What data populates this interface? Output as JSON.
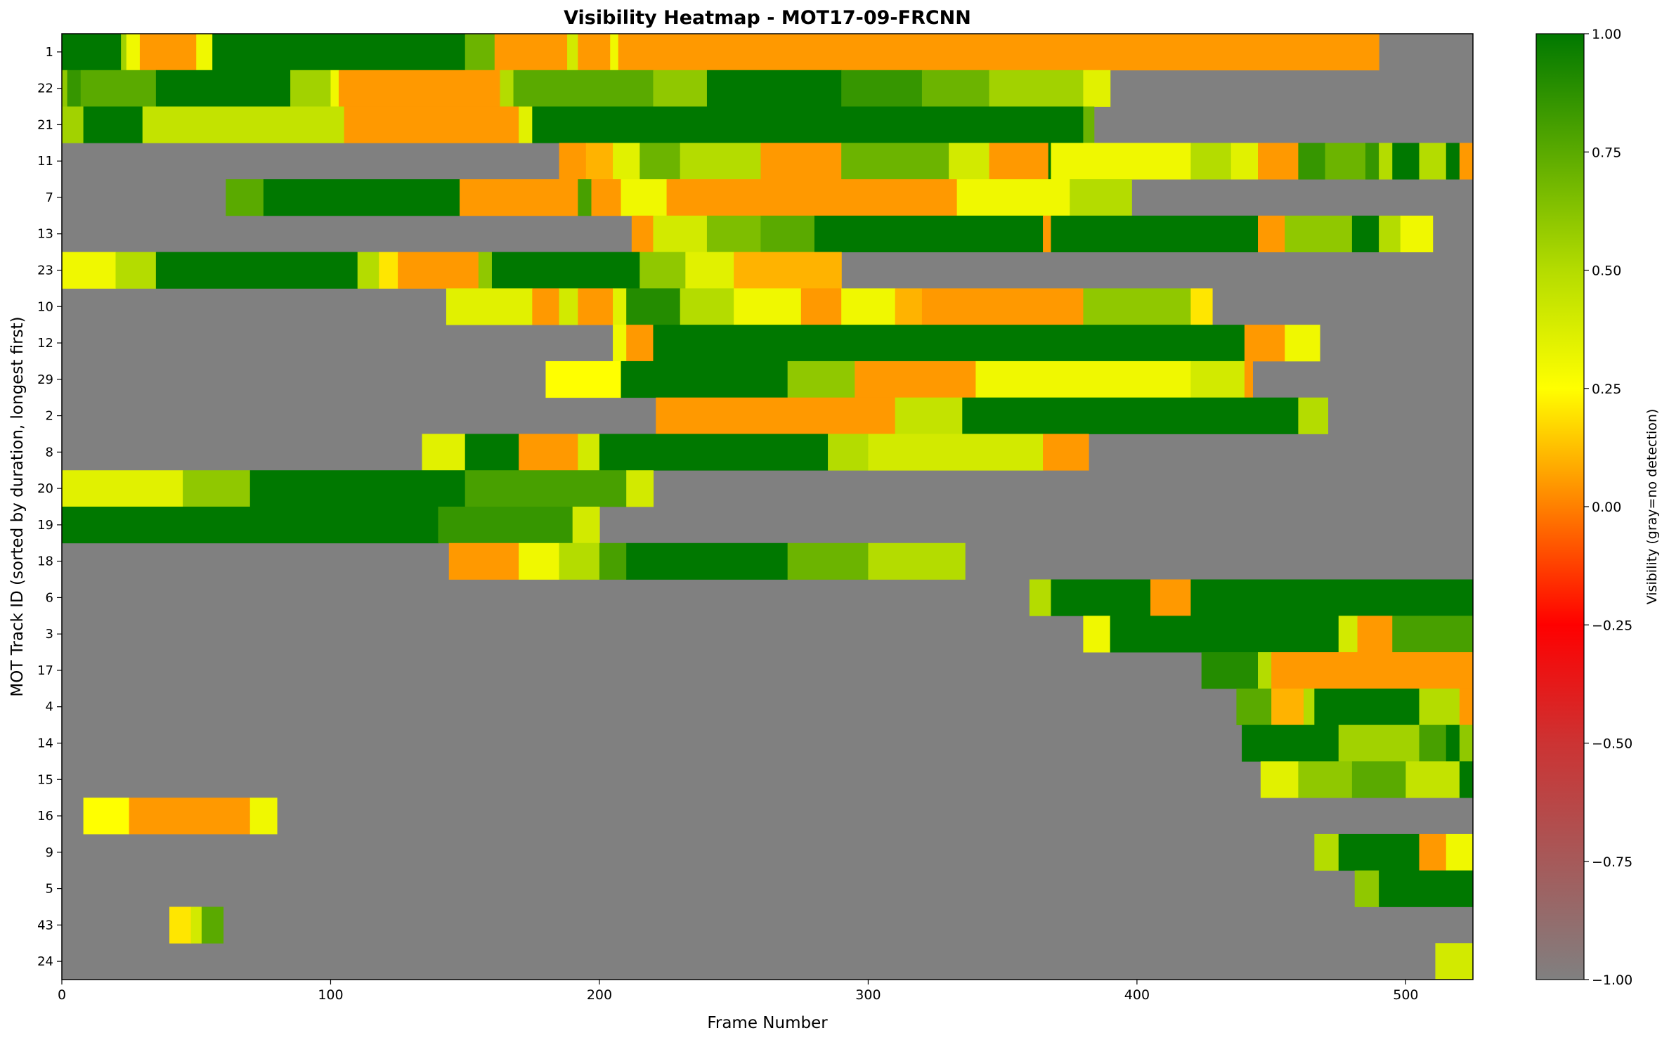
{
  "chart_data": {
    "type": "heatmap",
    "title": "Visibility Heatmap - MOT17-09-FRCNN",
    "xlabel": "Frame Number",
    "ylabel": "MOT Track ID (sorted by duration, longest first)",
    "xlim": [
      0,
      525
    ],
    "x_ticks": [
      0,
      100,
      200,
      300,
      400,
      500
    ],
    "colorbar": {
      "label": "Visibility (gray=no detection)",
      "range": [
        -1.0,
        1.0
      ],
      "ticks": [
        "1.00",
        "0.75",
        "0.50",
        "0.25",
        "0.00",
        "−0.25",
        "−0.50",
        "−0.75",
        "−1.00"
      ],
      "tick_values": [
        1.0,
        0.75,
        0.5,
        0.25,
        0.0,
        -0.25,
        -0.5,
        -0.75,
        -1.0
      ],
      "colors": {
        "-1.0": "#808080",
        "-0.5": "#cc3333",
        "-0.25": "#ff0000",
        "0.0": "#ff8000",
        "0.25": "#ffff00",
        "0.5": "#b4dc00",
        "1.0": "#007800"
      }
    },
    "no_detection_color": "#808080",
    "tracks": [
      {
        "id": "1",
        "segments": [
          [
            0,
            22,
            1.0
          ],
          [
            22,
            24,
            0.55
          ],
          [
            24,
            29,
            0.3
          ],
          [
            29,
            50,
            0.05
          ],
          [
            50,
            56,
            0.3
          ],
          [
            56,
            150,
            1.0
          ],
          [
            150,
            161,
            0.7
          ],
          [
            161,
            188,
            0.05
          ],
          [
            188,
            192,
            0.4
          ],
          [
            192,
            204,
            0.05
          ],
          [
            204,
            207,
            0.3
          ],
          [
            207,
            490,
            0.05
          ]
        ]
      },
      {
        "id": "22",
        "segments": [
          [
            0,
            2,
            0.6
          ],
          [
            2,
            7,
            0.85
          ],
          [
            7,
            35,
            0.75
          ],
          [
            35,
            85,
            1.0
          ],
          [
            85,
            100,
            0.55
          ],
          [
            100,
            103,
            0.3
          ],
          [
            103,
            163,
            0.05
          ],
          [
            163,
            168,
            0.5
          ],
          [
            168,
            220,
            0.75
          ],
          [
            220,
            240,
            0.6
          ],
          [
            240,
            290,
            1.0
          ],
          [
            290,
            320,
            0.85
          ],
          [
            320,
            345,
            0.7
          ],
          [
            345,
            380,
            0.55
          ],
          [
            380,
            390,
            0.35
          ]
        ]
      },
      {
        "id": "21",
        "segments": [
          [
            0,
            8,
            0.55
          ],
          [
            8,
            30,
            1.0
          ],
          [
            30,
            105,
            0.45
          ],
          [
            105,
            170,
            0.05
          ],
          [
            170,
            175,
            0.35
          ],
          [
            175,
            380,
            1.0
          ],
          [
            380,
            384,
            0.7
          ]
        ]
      },
      {
        "id": "11",
        "segments": [
          [
            185,
            195,
            0.05
          ],
          [
            195,
            205,
            0.1
          ],
          [
            205,
            215,
            0.35
          ],
          [
            215,
            230,
            0.7
          ],
          [
            230,
            260,
            0.5
          ],
          [
            260,
            290,
            0.05
          ],
          [
            290,
            330,
            0.7
          ],
          [
            330,
            345,
            0.4
          ],
          [
            345,
            367,
            0.05
          ],
          [
            367,
            368,
            1.0
          ],
          [
            368,
            420,
            0.3
          ],
          [
            420,
            435,
            0.5
          ],
          [
            435,
            445,
            0.35
          ],
          [
            445,
            460,
            0.05
          ],
          [
            460,
            470,
            0.85
          ],
          [
            470,
            485,
            0.7
          ],
          [
            485,
            490,
            0.85
          ],
          [
            490,
            495,
            0.5
          ],
          [
            495,
            505,
            1.0
          ],
          [
            505,
            515,
            0.5
          ],
          [
            515,
            520,
            1.0
          ],
          [
            520,
            525,
            0.05
          ]
        ]
      },
      {
        "id": "7",
        "segments": [
          [
            61,
            75,
            0.75
          ],
          [
            75,
            148,
            1.0
          ],
          [
            148,
            192,
            0.05
          ],
          [
            192,
            197,
            0.8
          ],
          [
            197,
            208,
            0.05
          ],
          [
            208,
            225,
            0.3
          ],
          [
            225,
            333,
            0.05
          ],
          [
            333,
            375,
            0.3
          ],
          [
            375,
            398,
            0.5
          ]
        ]
      },
      {
        "id": "13",
        "segments": [
          [
            212,
            220,
            0.05
          ],
          [
            220,
            240,
            0.4
          ],
          [
            240,
            260,
            0.65
          ],
          [
            260,
            280,
            0.75
          ],
          [
            280,
            365,
            1.0
          ],
          [
            365,
            368,
            0.05
          ],
          [
            368,
            445,
            1.0
          ],
          [
            445,
            455,
            0.05
          ],
          [
            455,
            480,
            0.6
          ],
          [
            480,
            490,
            1.0
          ],
          [
            490,
            498,
            0.5
          ],
          [
            498,
            510,
            0.3
          ]
        ]
      },
      {
        "id": "23",
        "segments": [
          [
            0,
            20,
            0.3
          ],
          [
            20,
            35,
            0.5
          ],
          [
            35,
            110,
            1.0
          ],
          [
            110,
            118,
            0.5
          ],
          [
            118,
            125,
            0.2
          ],
          [
            125,
            155,
            0.05
          ],
          [
            155,
            160,
            0.6
          ],
          [
            160,
            215,
            1.0
          ],
          [
            215,
            232,
            0.6
          ],
          [
            232,
            250,
            0.35
          ],
          [
            250,
            290,
            0.1
          ]
        ]
      },
      {
        "id": "10",
        "segments": [
          [
            143,
            175,
            0.35
          ],
          [
            175,
            185,
            0.05
          ],
          [
            185,
            192,
            0.4
          ],
          [
            192,
            205,
            0.05
          ],
          [
            205,
            210,
            0.35
          ],
          [
            210,
            230,
            0.9
          ],
          [
            230,
            250,
            0.5
          ],
          [
            250,
            275,
            0.3
          ],
          [
            275,
            290,
            0.05
          ],
          [
            290,
            310,
            0.3
          ],
          [
            310,
            320,
            0.1
          ],
          [
            320,
            380,
            0.05
          ],
          [
            380,
            420,
            0.6
          ],
          [
            420,
            428,
            0.2
          ]
        ]
      },
      {
        "id": "12",
        "segments": [
          [
            205,
            210,
            0.3
          ],
          [
            210,
            220,
            0.05
          ],
          [
            220,
            440,
            1.0
          ],
          [
            440,
            455,
            0.05
          ],
          [
            455,
            468,
            0.3
          ]
        ]
      },
      {
        "id": "29",
        "segments": [
          [
            180,
            208,
            0.25
          ],
          [
            208,
            270,
            1.0
          ],
          [
            270,
            295,
            0.6
          ],
          [
            295,
            340,
            0.05
          ],
          [
            340,
            420,
            0.3
          ],
          [
            420,
            440,
            0.4
          ],
          [
            440,
            443,
            0.05
          ]
        ]
      },
      {
        "id": "2",
        "segments": [
          [
            221,
            310,
            0.05
          ],
          [
            310,
            335,
            0.45
          ],
          [
            335,
            460,
            1.0
          ],
          [
            460,
            471,
            0.5
          ]
        ]
      },
      {
        "id": "8",
        "segments": [
          [
            134,
            150,
            0.35
          ],
          [
            150,
            170,
            1.0
          ],
          [
            170,
            192,
            0.05
          ],
          [
            192,
            200,
            0.4
          ],
          [
            200,
            285,
            1.0
          ],
          [
            285,
            300,
            0.5
          ],
          [
            300,
            365,
            0.4
          ],
          [
            365,
            382,
            0.05
          ]
        ]
      },
      {
        "id": "20",
        "segments": [
          [
            0,
            45,
            0.35
          ],
          [
            45,
            70,
            0.6
          ],
          [
            70,
            150,
            1.0
          ],
          [
            150,
            210,
            0.8
          ],
          [
            210,
            220,
            0.4
          ]
        ]
      },
      {
        "id": "19",
        "segments": [
          [
            0,
            140,
            1.0
          ],
          [
            140,
            190,
            0.85
          ],
          [
            190,
            200,
            0.4
          ]
        ]
      },
      {
        "id": "18",
        "segments": [
          [
            144,
            170,
            0.05
          ],
          [
            170,
            185,
            0.3
          ],
          [
            185,
            200,
            0.5
          ],
          [
            200,
            210,
            0.8
          ],
          [
            210,
            270,
            1.0
          ],
          [
            270,
            300,
            0.7
          ],
          [
            300,
            336,
            0.5
          ]
        ]
      },
      {
        "id": "6",
        "segments": [
          [
            360,
            368,
            0.5
          ],
          [
            368,
            405,
            1.0
          ],
          [
            405,
            420,
            0.05
          ],
          [
            420,
            525,
            1.0
          ]
        ]
      },
      {
        "id": "3",
        "segments": [
          [
            380,
            390,
            0.3
          ],
          [
            390,
            475,
            1.0
          ],
          [
            475,
            482,
            0.4
          ],
          [
            482,
            495,
            0.05
          ],
          [
            495,
            505,
            0.8
          ],
          [
            505,
            525,
            0.8
          ]
        ]
      },
      {
        "id": "17",
        "segments": [
          [
            424,
            445,
            0.9
          ],
          [
            445,
            450,
            0.5
          ],
          [
            450,
            525,
            0.05
          ]
        ]
      },
      {
        "id": "4",
        "segments": [
          [
            437,
            450,
            0.75
          ],
          [
            450,
            462,
            0.1
          ],
          [
            462,
            466,
            0.5
          ],
          [
            466,
            505,
            1.0
          ],
          [
            505,
            520,
            0.5
          ],
          [
            520,
            525,
            0.05
          ]
        ]
      },
      {
        "id": "14",
        "segments": [
          [
            439,
            475,
            1.0
          ],
          [
            475,
            505,
            0.55
          ],
          [
            505,
            515,
            0.8
          ],
          [
            515,
            520,
            1.0
          ],
          [
            520,
            525,
            0.6
          ]
        ]
      },
      {
        "id": "15",
        "segments": [
          [
            446,
            460,
            0.35
          ],
          [
            460,
            480,
            0.6
          ],
          [
            480,
            500,
            0.75
          ],
          [
            500,
            520,
            0.45
          ],
          [
            520,
            525,
            1.0
          ]
        ]
      },
      {
        "id": "16",
        "segments": [
          [
            8,
            25,
            0.25
          ],
          [
            25,
            70,
            0.05
          ],
          [
            70,
            80,
            0.3
          ]
        ]
      },
      {
        "id": "9",
        "segments": [
          [
            466,
            475,
            0.5
          ],
          [
            475,
            505,
            1.0
          ],
          [
            505,
            515,
            0.05
          ],
          [
            515,
            525,
            0.3
          ]
        ]
      },
      {
        "id": "5",
        "segments": [
          [
            481,
            490,
            0.6
          ],
          [
            490,
            525,
            1.0
          ]
        ]
      },
      {
        "id": "43",
        "segments": [
          [
            40,
            48,
            0.2
          ],
          [
            48,
            52,
            0.4
          ],
          [
            52,
            60,
            0.75
          ]
        ]
      },
      {
        "id": "24",
        "segments": [
          [
            511,
            525,
            0.4
          ]
        ]
      }
    ]
  }
}
